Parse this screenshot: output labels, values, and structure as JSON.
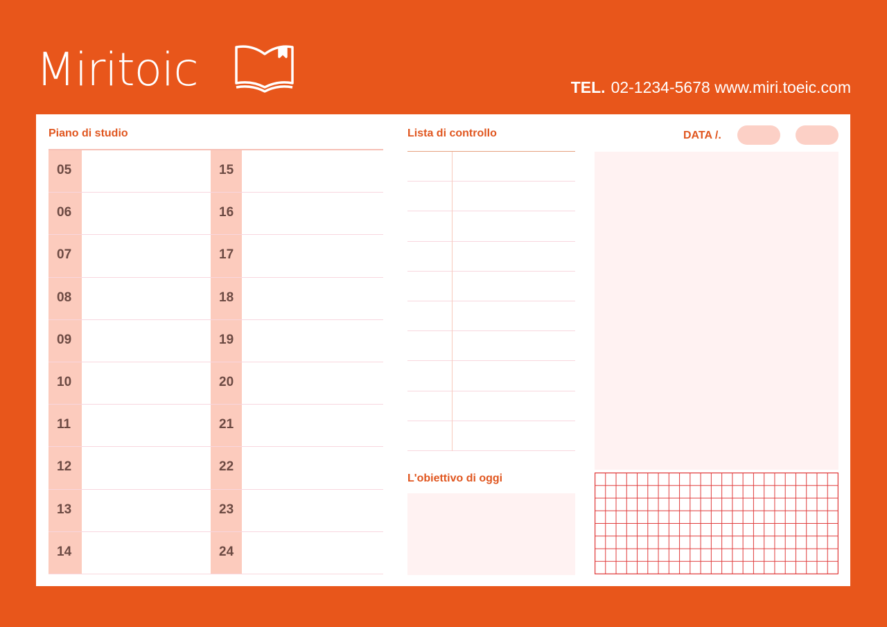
{
  "header": {
    "brand": "Miritoic",
    "logo_icon": "open-book-icon",
    "tel_label": "TEL.",
    "tel": "02-1234-5678",
    "website": "www.miri.toeic.com"
  },
  "colors": {
    "background": "#e8561b",
    "accent": "#e0561f",
    "hour_cell": "#fccbbd",
    "grid": "#e03c3c"
  },
  "study_plan": {
    "title": "Piano di studio",
    "hours_left": [
      "05",
      "06",
      "07",
      "08",
      "09",
      "10",
      "11",
      "12",
      "13",
      "14"
    ],
    "hours_right": [
      "15",
      "16",
      "17",
      "18",
      "19",
      "20",
      "21",
      "22",
      "23",
      "24"
    ]
  },
  "checklist": {
    "title": "Lista di controllo",
    "rows": 10
  },
  "goal": {
    "title": "L'obiettivo di oggi"
  },
  "date": {
    "label": "DATA /."
  },
  "grid": {
    "columns": 23,
    "rows": 8
  }
}
